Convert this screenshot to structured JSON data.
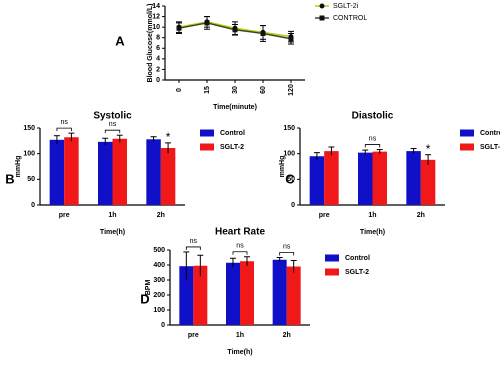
{
  "chart_data": [
    {
      "type": "line",
      "panel_label": "A",
      "categories": [
        "0",
        "15",
        "30",
        "60",
        "120"
      ],
      "x_label": "Time(minute)",
      "y_label": "Blood Glucose(mmol/L)",
      "ylim": [
        0,
        14
      ],
      "yticks": [
        0,
        2,
        4,
        6,
        8,
        10,
        12,
        14
      ],
      "legend": "right",
      "series": [
        {
          "name": "SGLT-2i",
          "color": "#b8cc1a",
          "marker": "circle",
          "values": [
            10.0,
            11.0,
            9.8,
            9.0,
            8.2
          ],
          "errors": [
            1.0,
            1.0,
            1.2,
            1.3,
            1.0
          ]
        },
        {
          "name": "CONTROL",
          "color": "#33501a",
          "marker": "square",
          "values": [
            9.8,
            10.8,
            9.5,
            8.8,
            7.8
          ],
          "errors": [
            1.0,
            1.2,
            1.0,
            1.5,
            1.0
          ]
        }
      ]
    },
    {
      "type": "bar",
      "panel_label": "B",
      "title": "Systolic",
      "categories": [
        "pre",
        "1h",
        "2h"
      ],
      "x_label": "Time(h)",
      "y_label": "mmHg",
      "ylim": [
        0,
        150
      ],
      "yticks": [
        0,
        50,
        100,
        150
      ],
      "legend": "right",
      "significance": [
        "ns",
        "ns",
        "*"
      ],
      "series": [
        {
          "name": "Control",
          "color": "#1010c8",
          "values": [
            127,
            123,
            128
          ],
          "errors": [
            8,
            7,
            5
          ]
        },
        {
          "name": "SGLT-2",
          "color": "#f01818",
          "values": [
            132,
            129,
            111
          ],
          "errors": [
            8,
            7,
            10
          ]
        }
      ]
    },
    {
      "type": "bar",
      "panel_label": "C",
      "title": "Diastolic",
      "categories": [
        "pre",
        "1h",
        "2h"
      ],
      "x_label": "Time(h)",
      "y_label": "mmHg",
      "ylim": [
        0,
        150
      ],
      "yticks": [
        0,
        50,
        100,
        150
      ],
      "legend": "right",
      "significance": [
        null,
        "ns",
        "*"
      ],
      "series": [
        {
          "name": "Control",
          "color": "#1010c8",
          "values": [
            95,
            102,
            105
          ],
          "errors": [
            7,
            5,
            5
          ]
        },
        {
          "name": "SGLT-2",
          "color": "#f01818",
          "values": [
            105,
            104,
            88
          ],
          "errors": [
            8,
            4,
            10
          ]
        }
      ]
    },
    {
      "type": "bar",
      "panel_label": "D",
      "title": "Heart Rate",
      "categories": [
        "pre",
        "1h",
        "2h"
      ],
      "x_label": "Time(h)",
      "y_label": "BPM",
      "ylim": [
        0,
        500
      ],
      "yticks": [
        0,
        100,
        200,
        300,
        400,
        500
      ],
      "legend": "right",
      "significance": [
        "ns",
        "ns",
        "ns"
      ],
      "series": [
        {
          "name": "Control",
          "color": "#1010c8",
          "values": [
            392,
            415,
            435
          ],
          "errors": [
            95,
            30,
            15
          ]
        },
        {
          "name": "SGLT-2",
          "color": "#f01818",
          "values": [
            395,
            425,
            390
          ],
          "errors": [
            70,
            30,
            40
          ]
        }
      ]
    }
  ]
}
